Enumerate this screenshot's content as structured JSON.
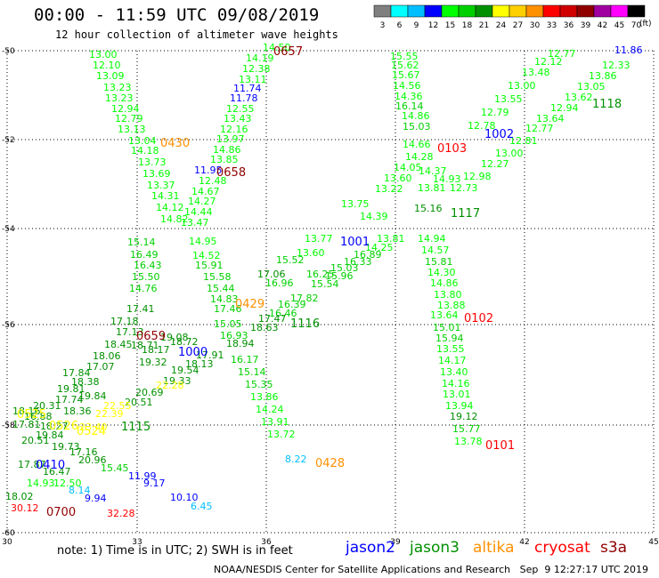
{
  "title": "00:00 - 11:59 UTC 09/08/2019",
  "subtitle": "12 hour collection of altimeter wave heights",
  "colorbar": {
    "labels": [
      "3",
      "6",
      "9",
      "12",
      "15",
      "18",
      "21",
      "24",
      "27",
      "30",
      "33",
      "36",
      "39",
      "42",
      "45",
      "70"
    ],
    "colors": [
      "#7f7f7f",
      "#00ffff",
      "#00bfff",
      "#0000ff",
      "#00ff00",
      "#00d000",
      "#009000",
      "#ffff00",
      "#ffd000",
      "#ff9000",
      "#ff0000",
      "#d00000",
      "#900000",
      "#a000a0",
      "#ff00ff",
      "#000000"
    ],
    "unit": "(ft)"
  },
  "axes": {
    "lon_ticks": [
      "30",
      "33",
      "36",
      "39",
      "42",
      "45"
    ],
    "lat_ticks": [
      "-50",
      "-52",
      "-54",
      "-56",
      "-58",
      "-60"
    ]
  },
  "map": {
    "points": [
      [
        "14.50",
        "#00ff00",
        295,
        57
      ],
      [
        "14.19",
        "#00ff00",
        276,
        69
      ],
      [
        "12.38",
        "#00ff00",
        272,
        81
      ],
      [
        "13.11",
        "#00ff00",
        268,
        93
      ],
      [
        "11.74",
        "#0000ff",
        262,
        103
      ],
      [
        "11.78",
        "#0000ff",
        258,
        114
      ],
      [
        "12.55",
        "#00ff00",
        254,
        126
      ],
      [
        "13.43",
        "#00ff00",
        251,
        137
      ],
      [
        "12.16",
        "#00ff00",
        247,
        149
      ],
      [
        "13.97",
        "#00ff00",
        243,
        160
      ],
      [
        "14.86",
        "#00ff00",
        239,
        172
      ],
      [
        "13.85",
        "#00ff00",
        236,
        183
      ],
      [
        "11.95",
        "#0000ff",
        218,
        195
      ],
      [
        "12.48",
        "#00ff00",
        223,
        207
      ],
      [
        "14.67",
        "#00ff00",
        215,
        219
      ],
      [
        "14.27",
        "#00ff00",
        211,
        230
      ],
      [
        "14.44",
        "#00ff00",
        207,
        242
      ],
      [
        "13.47",
        "#00ff00",
        203,
        254
      ],
      [
        "14.95",
        "#00ff00",
        212,
        275
      ],
      [
        "14.52",
        "#00ff00",
        216,
        291
      ],
      [
        "15.91",
        "#00d000",
        219,
        302
      ],
      [
        "15.58",
        "#00d000",
        228,
        315
      ],
      [
        "15.44",
        "#00d000",
        232,
        328
      ],
      [
        "14.83",
        "#00d000",
        236,
        340
      ],
      [
        "17.46",
        "#00d000",
        240,
        351
      ],
      [
        "17.13",
        "#009000",
        130,
        377
      ],
      [
        "18.45",
        "#009000",
        117,
        391
      ],
      [
        "18.06",
        "#009000",
        104,
        404
      ],
      [
        "17.07",
        "#009000",
        97,
        416
      ],
      [
        "18.16",
        "#009000",
        14,
        466
      ],
      [
        "13.00",
        "#00ff00",
        100,
        65
      ],
      [
        "12.10",
        "#00ff00",
        104,
        77
      ],
      [
        "13.09",
        "#00ff00",
        108,
        89
      ],
      [
        "13.23",
        "#00ff00",
        116,
        102
      ],
      [
        "13.23",
        "#00ff00",
        118,
        114
      ],
      [
        "12.94",
        "#00ff00",
        125,
        126
      ],
      [
        "12.79",
        "#00ff00",
        129,
        137
      ],
      [
        "13.13",
        "#00ff00",
        132,
        149
      ],
      [
        "13.04",
        "#00ff00",
        144,
        162
      ],
      [
        "14.18",
        "#00ff00",
        147,
        173
      ],
      [
        "13.73",
        "#00ff00",
        155,
        186
      ],
      [
        "13.69",
        "#00ff00",
        160,
        199
      ],
      [
        "13.37",
        "#00ff00",
        165,
        212
      ],
      [
        "14.31",
        "#00ff00",
        170,
        224
      ],
      [
        "14.12",
        "#00ff00",
        175,
        237
      ],
      [
        "14.82",
        "#00ff00",
        180,
        250
      ],
      [
        "15.14",
        "#00d000",
        143,
        276
      ],
      [
        "16.49",
        "#00d000",
        146,
        290
      ],
      [
        "16.43",
        "#00d000",
        150,
        302
      ],
      [
        "15.50",
        "#00d000",
        148,
        315
      ],
      [
        "14.76",
        "#00d000",
        145,
        328
      ],
      [
        "17.41",
        "#009000",
        142,
        351
      ],
      [
        "17.18",
        "#009000",
        124,
        365
      ],
      [
        "15.55",
        "#00ff00",
        438,
        67
      ],
      [
        "15.62",
        "#00ff00",
        439,
        77
      ],
      [
        "15.67",
        "#00ff00",
        440,
        88
      ],
      [
        "14.56",
        "#00ff00",
        441,
        100
      ],
      [
        "14.36",
        "#00ff00",
        443,
        112
      ],
      [
        "16.14",
        "#00d000",
        444,
        123
      ],
      [
        "14.86",
        "#00ff00",
        451,
        134
      ],
      [
        "15.03",
        "#00d000",
        452,
        146
      ],
      [
        "14.66",
        "#00ff00",
        452,
        166
      ],
      [
        "13.81",
        "#00ff00",
        469,
        215
      ],
      [
        "15.16",
        "#009000",
        465,
        238
      ],
      [
        "14.94",
        "#00ff00",
        469,
        272
      ],
      [
        "14.57",
        "#00ff00",
        473,
        285
      ],
      [
        "15.81",
        "#00d000",
        477,
        298
      ],
      [
        "14.30",
        "#00ff00",
        480,
        310
      ],
      [
        "14.86",
        "#00ff00",
        483,
        322
      ],
      [
        "13.80",
        "#00ff00",
        487,
        335
      ],
      [
        "13.88",
        "#00ff00",
        491,
        347
      ],
      [
        "13.64",
        "#00ff00",
        483,
        358
      ],
      [
        "15.01",
        "#00d000",
        486,
        372
      ],
      [
        "15.94",
        "#00d000",
        489,
        384
      ],
      [
        "13.55",
        "#00ff00",
        490,
        396
      ],
      [
        "14.17",
        "#00ff00",
        492,
        409
      ],
      [
        "13.40",
        "#00ff00",
        494,
        422
      ],
      [
        "14.16",
        "#00ff00",
        496,
        435
      ],
      [
        "13.01",
        "#00ff00",
        497,
        447
      ],
      [
        "13.94",
        "#00ff00",
        500,
        460
      ],
      [
        "19.12",
        "#009000",
        505,
        472
      ],
      [
        "15.77",
        "#00d000",
        508,
        486
      ],
      [
        "13.78",
        "#00ff00",
        510,
        500
      ],
      [
        "15.52",
        "#00d000",
        310,
        296
      ],
      [
        "16.96",
        "#00d000",
        298,
        322
      ],
      [
        "17.06",
        "#009000",
        289,
        312
      ],
      [
        "17.82",
        "#00d000",
        326,
        339
      ],
      [
        "16.39",
        "#00d000",
        312,
        346
      ],
      [
        "16.46",
        "#00d000",
        302,
        356
      ],
      [
        "17.47",
        "#009000",
        290,
        362
      ],
      [
        "15.05",
        "#00d000",
        240,
        368
      ],
      [
        "16.93",
        "#00d000",
        247,
        381
      ],
      [
        "18.94",
        "#009000",
        254,
        390
      ],
      [
        "18.63",
        "#009000",
        281,
        372
      ],
      [
        "16.17",
        "#00d000",
        259,
        408
      ],
      [
        "15.14",
        "#00d000",
        267,
        422
      ],
      [
        "15.35",
        "#00d000",
        275,
        436
      ],
      [
        "13.86",
        "#00ff00",
        281,
        450
      ],
      [
        "14.24",
        "#00ff00",
        287,
        464
      ],
      [
        "13.91",
        "#00ff00",
        293,
        478
      ],
      [
        "13.72",
        "#00ff00",
        300,
        492
      ],
      [
        "16.25",
        "#00d000",
        344,
        312
      ],
      [
        "15.96",
        "#00d000",
        365,
        314
      ],
      [
        "15.54",
        "#00d000",
        349,
        323
      ],
      [
        "16.33",
        "#00d000",
        386,
        298
      ],
      [
        "15.03",
        "#00d000",
        371,
        305
      ],
      [
        "16.89",
        "#00d000",
        397,
        290
      ],
      [
        "14.25",
        "#00ff00",
        410,
        282
      ],
      [
        "13.81",
        "#00ff00",
        423,
        272
      ],
      [
        "13.77",
        "#00ff00",
        342,
        272
      ],
      [
        "13.60",
        "#00ff00",
        333,
        288
      ],
      [
        "14.39",
        "#00ff00",
        404,
        247
      ],
      [
        "13.75",
        "#00ff00",
        383,
        233
      ],
      [
        "13.22",
        "#00ff00",
        421,
        216
      ],
      [
        "13.60",
        "#00ff00",
        431,
        204
      ],
      [
        "14.05",
        "#00ff00",
        442,
        192
      ],
      [
        "14.28",
        "#00ff00",
        455,
        180
      ],
      [
        "14.37",
        "#00ff00",
        470,
        196
      ],
      [
        "14.93",
        "#00ff00",
        486,
        205
      ],
      [
        "12.73",
        "#00ff00",
        505,
        215
      ],
      [
        "12.98",
        "#00ff00",
        520,
        202
      ],
      [
        "12.27",
        "#00ff00",
        540,
        188
      ],
      [
        "13.00",
        "#00ff00",
        556,
        176
      ],
      [
        "12.81",
        "#00ff00",
        572,
        162
      ],
      [
        "12.77",
        "#00ff00",
        590,
        148
      ],
      [
        "13.64",
        "#00ff00",
        602,
        137
      ],
      [
        "12.94",
        "#00ff00",
        618,
        125
      ],
      [
        "13.62",
        "#00ff00",
        634,
        113
      ],
      [
        "13.05",
        "#00ff00",
        648,
        101
      ],
      [
        "13.86",
        "#00ff00",
        661,
        89
      ],
      [
        "12.33",
        "#00ff00",
        676,
        77
      ],
      [
        "11.86",
        "#0000ff",
        690,
        60
      ],
      [
        "12.77",
        "#00ff00",
        615,
        64
      ],
      [
        "12.12",
        "#00ff00",
        600,
        73
      ],
      [
        "13.48",
        "#00ff00",
        586,
        85
      ],
      [
        "13.00",
        "#00ff00",
        570,
        100
      ],
      [
        "13.55",
        "#00ff00",
        555,
        115
      ],
      [
        "12.79",
        "#00ff00",
        540,
        130
      ],
      [
        "12.78",
        "#00ff00",
        525,
        145
      ],
      [
        "19.32",
        "#009000",
        156,
        411
      ],
      [
        "18.71",
        "#009000",
        147,
        392
      ],
      [
        "18.17",
        "#009000",
        159,
        397
      ],
      [
        "19.54",
        "#009000",
        192,
        420
      ],
      [
        "19.33",
        "#009000",
        183,
        432
      ],
      [
        "20.51",
        "#009000",
        140,
        456
      ],
      [
        "20.69",
        "#009000",
        152,
        445
      ],
      [
        "22.28",
        "#ffff00",
        175,
        437
      ],
      [
        "18.13",
        "#009000",
        208,
        413
      ],
      [
        "17.91",
        "#009000",
        220,
        403
      ],
      [
        "19.08",
        "#009000",
        180,
        383
      ],
      [
        "18.72",
        "#009000",
        191,
        388
      ],
      [
        "19.73",
        "#009000",
        58,
        506
      ],
      [
        "17.87",
        "#009000",
        20,
        526
      ],
      [
        "16.47",
        "#009000",
        48,
        534
      ],
      [
        "14.93",
        "#00ff00",
        30,
        547
      ],
      [
        "12.50",
        "#00ff00",
        60,
        547
      ],
      [
        "18.02",
        "#009000",
        6,
        562
      ],
      [
        "30.12",
        "#ff0000",
        12,
        575
      ],
      [
        "8.14",
        "#00bfff",
        77,
        555
      ],
      [
        "9.94",
        "#0000ff",
        95,
        564
      ],
      [
        "11.99",
        "#0000ff",
        144,
        539
      ],
      [
        "9.17",
        "#0000ff",
        161,
        547
      ],
      [
        "10.10",
        "#0000ff",
        191,
        563
      ],
      [
        "6.45",
        "#00bfff",
        214,
        573
      ],
      [
        "32.28",
        "#ff0000",
        120,
        581
      ],
      [
        "15.45",
        "#00d000",
        113,
        530
      ],
      [
        "20.96",
        "#009000",
        88,
        521
      ],
      [
        "17.16",
        "#009000",
        78,
        512
      ],
      [
        "20.51",
        "#009000",
        24,
        499
      ],
      [
        "17.81",
        "#009000",
        14,
        481
      ],
      [
        "16.88",
        "#009000",
        27,
        472
      ],
      [
        "18.27",
        "#009000",
        45,
        483
      ],
      [
        "19.84",
        "#009000",
        40,
        493
      ],
      [
        "19.84",
        "#009000",
        88,
        449
      ],
      [
        "17.74",
        "#009000",
        62,
        453
      ],
      [
        "18.36",
        "#009000",
        71,
        466
      ],
      [
        "20.31",
        "#009000",
        37,
        460
      ],
      [
        "22.55",
        "#ffff00",
        116,
        460
      ],
      [
        "22.39",
        "#ffff00",
        107,
        469
      ],
      [
        "23.40",
        "#ffff00",
        89,
        484
      ],
      [
        "17.84",
        "#009000",
        70,
        423
      ],
      [
        "18.38",
        "#009000",
        80,
        433
      ],
      [
        "19.81",
        "#009000",
        64,
        441
      ],
      [
        "8.22",
        "#00bfff",
        320,
        520
      ]
    ],
    "labels": [
      [
        "0657",
        "#900000",
        307,
        62
      ],
      [
        "0430",
        "#ff9000",
        180,
        165
      ],
      [
        "0658",
        "#900000",
        243,
        198
      ],
      [
        "0429",
        "#ff9000",
        264,
        346
      ],
      [
        "0659",
        "#900000",
        153,
        382
      ],
      [
        "1000",
        "#0000ff",
        200,
        400
      ],
      [
        "0103",
        "#ff0000",
        491,
        171
      ],
      [
        "1002",
        "#0000ff",
        544,
        155
      ],
      [
        "1117",
        "#009000",
        506,
        244
      ],
      [
        "1001",
        "#0000ff",
        382,
        276
      ],
      [
        "1118",
        "#009000",
        665,
        121
      ],
      [
        "1116",
        "#009000",
        326,
        368
      ],
      [
        "0102",
        "#ff0000",
        521,
        362
      ],
      [
        "0101",
        "#ff0000",
        545,
        505
      ],
      [
        "0428",
        "#ff9000",
        354,
        525
      ],
      [
        "0525",
        "#ffff00",
        19,
        470
      ],
      [
        "0526",
        "#ffff00",
        55,
        483
      ],
      [
        "0524",
        "#ffff00",
        86,
        489
      ],
      [
        "1115",
        "#009000",
        136,
        484
      ],
      [
        "0410",
        "#0000ff",
        40,
        527
      ],
      [
        "0700",
        "#900000",
        52,
        580
      ]
    ],
    "tracks": [
      [
        "#00ff00",
        [
          [
            296,
            55
          ],
          [
            176,
            250
          ]
        ]
      ],
      [
        "#00ff00",
        [
          [
            100,
            63
          ],
          [
            180,
            250
          ]
        ]
      ],
      [
        "#00d000",
        [
          [
            235,
            275
          ],
          [
            120,
            400
          ]
        ]
      ],
      [
        "#00d000",
        [
          [
            180,
            250
          ],
          [
            145,
            365
          ]
        ]
      ],
      [
        "#00ff00",
        [
          [
            440,
            65
          ],
          [
            512,
            505
          ]
        ]
      ],
      [
        "#00ff00",
        [
          [
            720,
            55
          ],
          [
            160,
            440
          ]
        ]
      ],
      [
        "#00ff00",
        [
          [
            600,
            62
          ],
          [
            30,
            480
          ]
        ]
      ],
      [
        "#009000",
        [
          [
            300,
            340
          ],
          [
            10,
            520
          ]
        ]
      ]
    ]
  },
  "note": "note: 1) Time is in UTC; 2) SWH is in feet",
  "legend": [
    {
      "name": "jason2",
      "color": "#0000ff"
    },
    {
      "name": "jason3",
      "color": "#009000"
    },
    {
      "name": "altika",
      "color": "#ff9000"
    },
    {
      "name": "cryosat",
      "color": "#ff0000"
    },
    {
      "name": "s3a",
      "color": "#900000"
    }
  ],
  "footer": "NOAA/NESDIS Center for Satellite Applications and Research   Sep  9 12:27:17 UTC 2019"
}
